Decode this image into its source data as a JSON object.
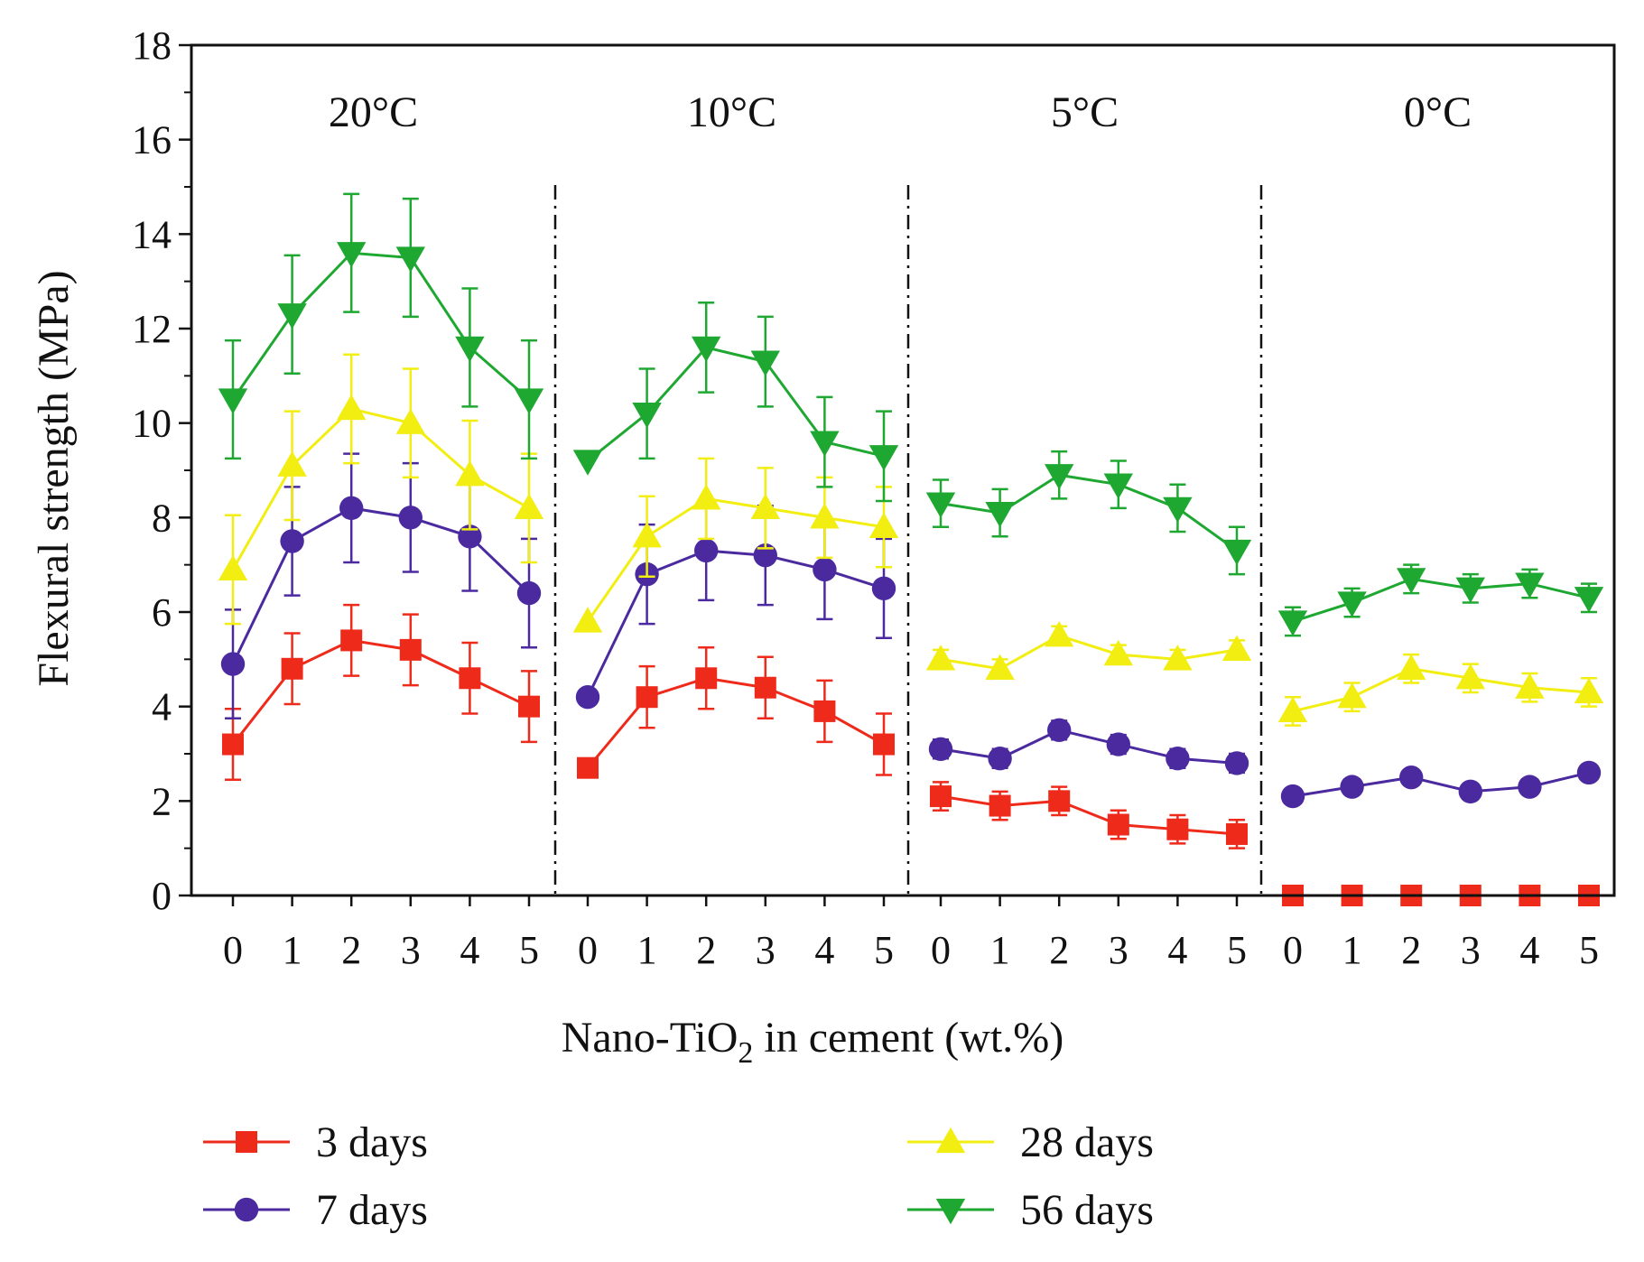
{
  "chart_data": {
    "type": "line",
    "title": "",
    "ylabel": "Flexural strength (MPa)",
    "xlabel_main": "Nano-TiO",
    "xlabel_sub": "2",
    "xlabel_tail": " in cement (wt.%)",
    "ylim": [
      0,
      18
    ],
    "yticks": [
      "0",
      "2",
      "4",
      "6",
      "8",
      "10",
      "12",
      "14",
      "16",
      "18"
    ],
    "x_categories": [
      "0",
      "1",
      "2",
      "3",
      "4",
      "5"
    ],
    "colors": {
      "3 days": "#ee2a1b",
      "7 days": "#4b2aa0",
      "28 days": "#f2ee12",
      "56 days": "#1ea831"
    },
    "panels": [
      {
        "label": "20°C",
        "series": [
          {
            "name": "3 days",
            "values": [
              3.2,
              4.8,
              5.4,
              5.2,
              4.6,
              4.0
            ],
            "errors": [
              0.75,
              0.75,
              0.75,
              0.75,
              0.75,
              0.75
            ]
          },
          {
            "name": "7 days",
            "values": [
              4.9,
              7.5,
              8.2,
              8.0,
              7.6,
              6.4
            ],
            "errors": [
              1.15,
              1.15,
              1.15,
              1.15,
              1.15,
              1.15
            ]
          },
          {
            "name": "28 days",
            "values": [
              6.9,
              9.1,
              10.3,
              10.0,
              8.9,
              8.2
            ],
            "errors": [
              1.15,
              1.15,
              1.15,
              1.15,
              1.15,
              1.15
            ]
          },
          {
            "name": "56 days",
            "values": [
              10.5,
              12.3,
              13.6,
              13.5,
              11.6,
              10.5
            ],
            "errors": [
              1.25,
              1.25,
              1.25,
              1.25,
              1.25,
              1.25
            ]
          }
        ]
      },
      {
        "label": "10°C",
        "series": [
          {
            "name": "3 days",
            "values": [
              2.7,
              4.2,
              4.6,
              4.4,
              3.9,
              3.2
            ],
            "errors": [
              0,
              0.65,
              0.65,
              0.65,
              0.65,
              0.65
            ]
          },
          {
            "name": "7 days",
            "values": [
              4.2,
              6.8,
              7.3,
              7.2,
              6.9,
              6.5
            ],
            "errors": [
              0,
              1.05,
              1.05,
              1.05,
              1.05,
              1.05
            ]
          },
          {
            "name": "28 days",
            "values": [
              5.8,
              7.6,
              8.4,
              8.2,
              8.0,
              7.8
            ],
            "errors": [
              0,
              0.85,
              0.85,
              0.85,
              0.85,
              0.85
            ]
          },
          {
            "name": "56 days",
            "values": [
              9.2,
              10.2,
              11.6,
              11.3,
              9.6,
              9.3
            ],
            "errors": [
              0,
              0.95,
              0.95,
              0.95,
              0.95,
              0.95
            ]
          }
        ]
      },
      {
        "label": "5°C",
        "series": [
          {
            "name": "3 days",
            "values": [
              2.1,
              1.9,
              2.0,
              1.5,
              1.4,
              1.3
            ],
            "errors": [
              0.3,
              0.3,
              0.3,
              0.3,
              0.3,
              0.3
            ]
          },
          {
            "name": "7 days",
            "values": [
              3.1,
              2.9,
              3.5,
              3.2,
              2.9,
              2.8
            ],
            "errors": [
              0.2,
              0.2,
              0.2,
              0.2,
              0.2,
              0.2
            ]
          },
          {
            "name": "28 days",
            "values": [
              5.0,
              4.8,
              5.5,
              5.1,
              5.0,
              5.2
            ],
            "errors": [
              0.2,
              0.2,
              0.2,
              0.2,
              0.2,
              0.2
            ]
          },
          {
            "name": "56 days",
            "values": [
              8.3,
              8.1,
              8.9,
              8.7,
              8.2,
              7.3
            ],
            "errors": [
              0.5,
              0.5,
              0.5,
              0.5,
              0.5,
              0.5
            ]
          }
        ]
      },
      {
        "label": "0°C",
        "series": [
          {
            "name": "3 days",
            "values": [
              0,
              0,
              0,
              0,
              0,
              0
            ],
            "errors": [
              0,
              0,
              0,
              0,
              0,
              0
            ]
          },
          {
            "name": "7 days",
            "values": [
              2.1,
              2.3,
              2.5,
              2.2,
              2.3,
              2.6
            ],
            "errors": [
              0.1,
              0.1,
              0.1,
              0.1,
              0.1,
              0.1
            ]
          },
          {
            "name": "28 days",
            "values": [
              3.9,
              4.2,
              4.8,
              4.6,
              4.4,
              4.3
            ],
            "errors": [
              0.3,
              0.3,
              0.3,
              0.3,
              0.3,
              0.3
            ]
          },
          {
            "name": "56 days",
            "values": [
              5.8,
              6.2,
              6.7,
              6.5,
              6.6,
              6.3
            ],
            "errors": [
              0.3,
              0.3,
              0.3,
              0.3,
              0.3,
              0.3
            ]
          }
        ]
      }
    ],
    "legend": [
      {
        "name": "3 days",
        "marker": "square"
      },
      {
        "name": "7 days",
        "marker": "circle"
      },
      {
        "name": "28 days",
        "marker": "triangle-up"
      },
      {
        "name": "56 days",
        "marker": "triangle-down"
      }
    ]
  }
}
